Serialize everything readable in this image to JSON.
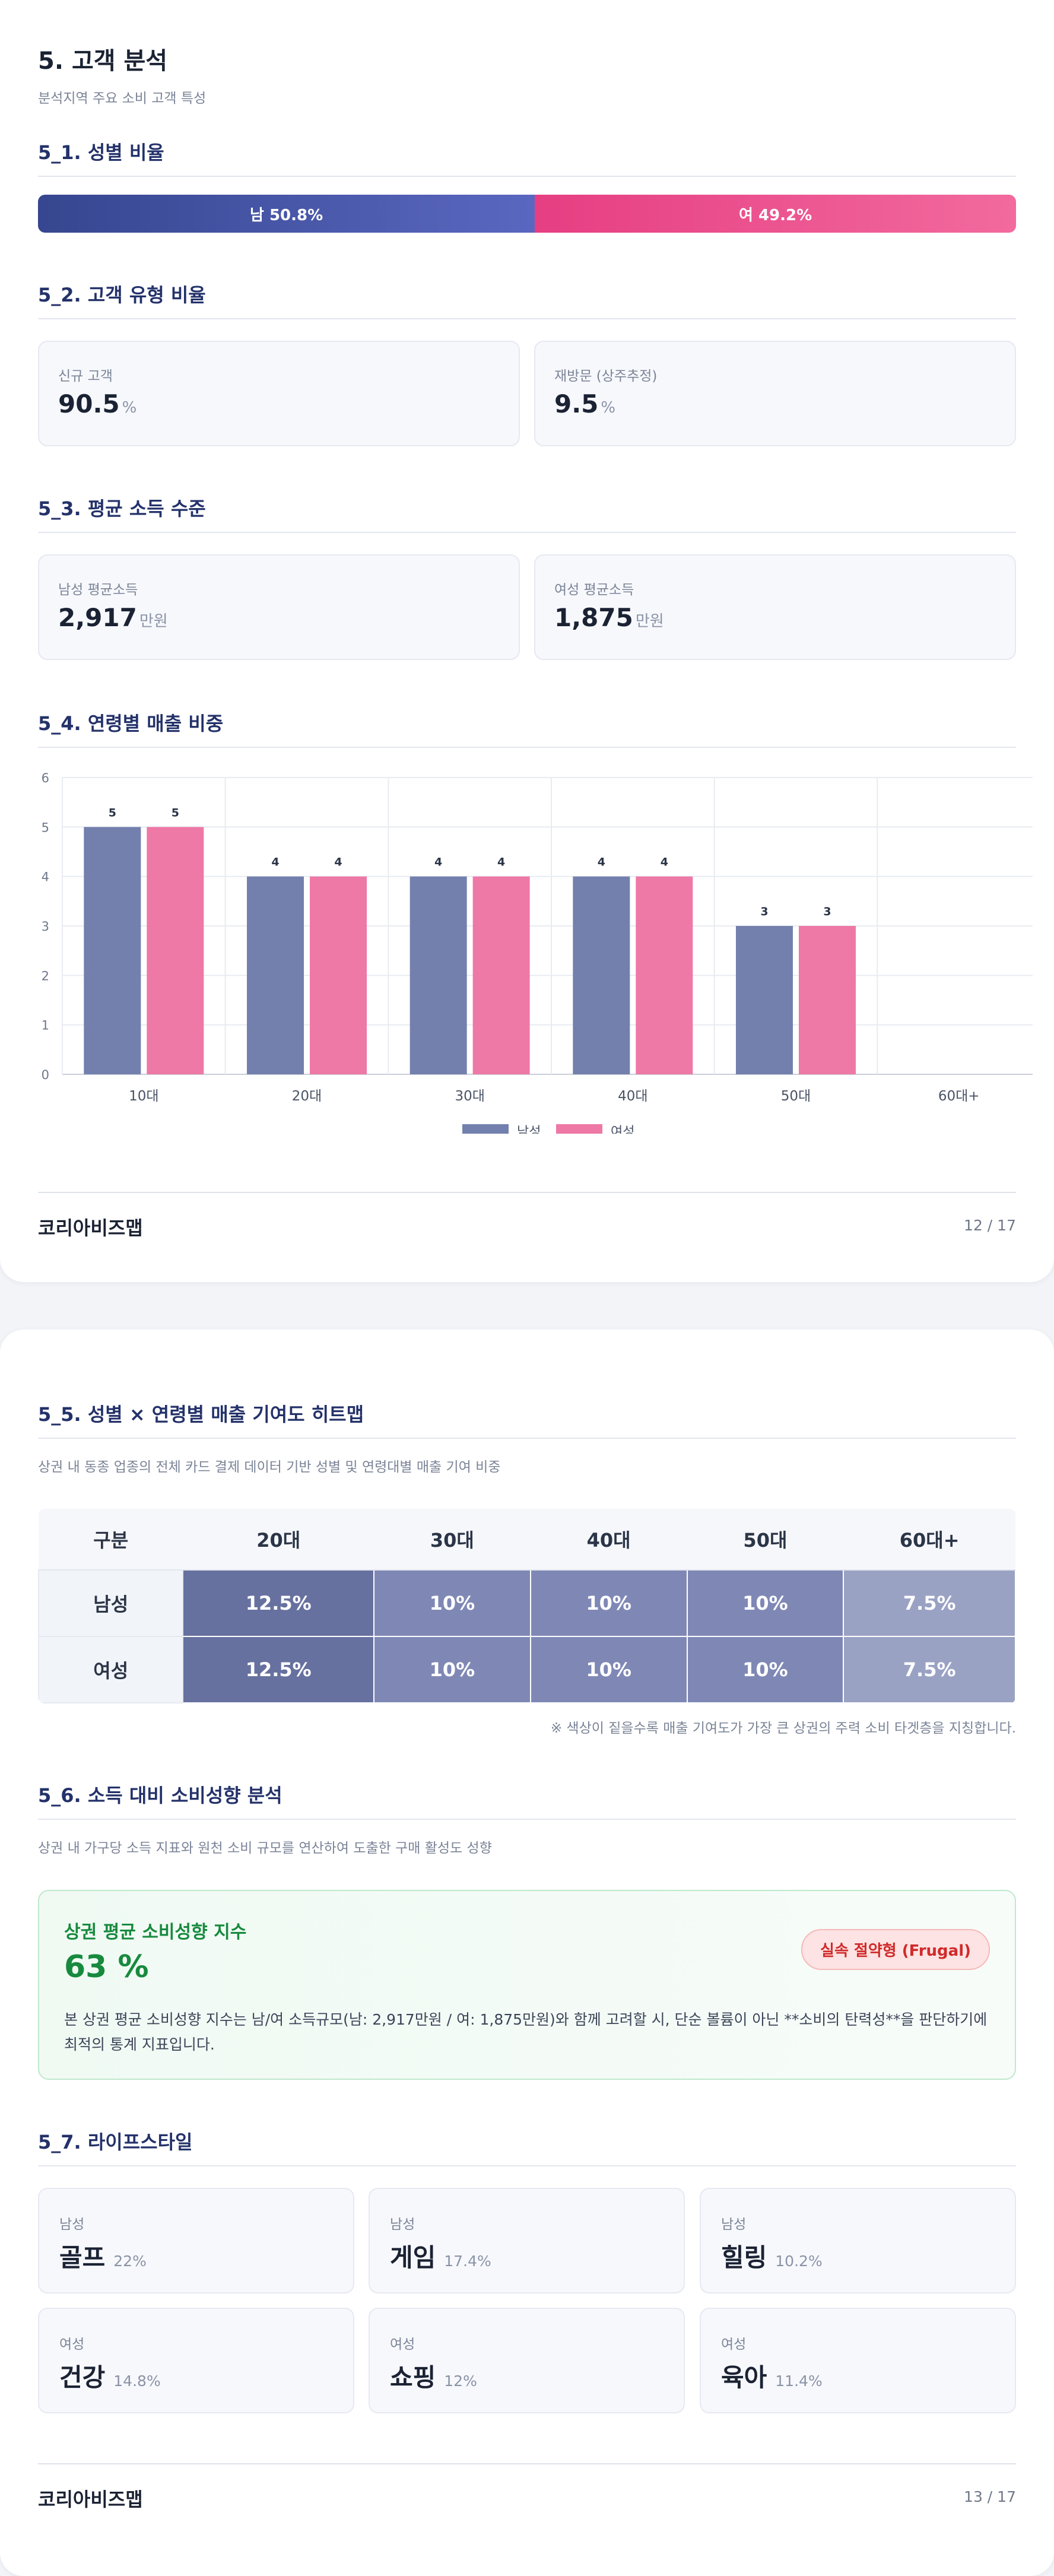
{
  "page1": {
    "title": "5. 고객 분석",
    "subtitle": "분석지역 주요 소비 고객 특성",
    "gender": {
      "heading": "5_1. 성별 비율",
      "male_label": "남 50.8%",
      "female_label": "여 49.2%",
      "male_pct": 50.8,
      "female_pct": 49.2,
      "colors": {
        "male": "#4b57a8",
        "female": "#ec4d8c"
      }
    },
    "customer_type": {
      "heading": "5_2. 고객 유형 비율",
      "new": {
        "label": "신규 고객",
        "value": "90.5",
        "unit": "%"
      },
      "returning": {
        "label": "재방문 (상주추정)",
        "value": "9.5",
        "unit": "%"
      }
    },
    "income": {
      "heading": "5_3. 평균 소득 수준",
      "male": {
        "label": "남성 평균소득",
        "value": "2,917",
        "unit": "만원"
      },
      "female": {
        "label": "여성 평균소득",
        "value": "1,875",
        "unit": "만원"
      }
    },
    "age_heading": "5_4. 연령별 매출 비중",
    "footer": {
      "brand": "코리아비즈맵",
      "page": "12 / 17"
    }
  },
  "chart_data": {
    "type": "bar",
    "categories": [
      "10대",
      "20대",
      "30대",
      "40대",
      "50대",
      "60대+"
    ],
    "series": [
      {
        "name": "남성",
        "values": [
          5,
          4,
          4,
          4,
          3,
          null
        ],
        "color": "#7380ad"
      },
      {
        "name": "여성",
        "values": [
          5,
          4,
          4,
          4,
          3,
          null
        ],
        "color": "#ee78a6"
      }
    ],
    "ylim": [
      0,
      6
    ],
    "yticks": [
      "0",
      "1",
      "2",
      "3",
      "4",
      "5",
      "6"
    ],
    "grid": true,
    "legend": "bottom-center"
  },
  "page2": {
    "heatmap": {
      "heading": "5_5. 성별 × 연령별 매출 기여도 히트맵",
      "desc": "상권 내 동종 업종의 전체 카드 결제 데이터 기반 성별 및 연령대별 매출 기여 비중",
      "corner": "구분",
      "columns": [
        "20대",
        "30대",
        "40대",
        "50대",
        "60대+"
      ],
      "rows": [
        {
          "label": "남성",
          "cells": [
            "12.5%",
            "10%",
            "10%",
            "10%",
            "7.5%"
          ]
        },
        {
          "label": "여성",
          "cells": [
            "12.5%",
            "10%",
            "10%",
            "10%",
            "7.5%"
          ]
        }
      ],
      "cell_colors": [
        "#67719f",
        "#7f88b5",
        "#7f88b5",
        "#7f88b5",
        "#9aa2c4"
      ],
      "note": "※ 색상이 짙을수록 매출 기여도가 가장 큰 상권의 주력 소비 타겟층을 지칭합니다."
    },
    "propensity": {
      "heading": "5_6. 소득 대비 소비성향 분석",
      "desc": "상권 내 가구당 소득 지표와 원천 소비 규모를 연산하여 도출한 구매 활성도 성향",
      "card_title": "상권 평균 소비성향 지수",
      "value": "63 %",
      "badge": "실속 절약형 (Frugal)",
      "body": "본 상권 평균 소비성향 지수는 남/여 소득규모(남: 2,917만원 / 여: 1,875만원)와 함께 고려할 시, 단순 볼륨이 아닌 **소비의 탄력성**을 판단하기에 최적의 통계 지표입니다."
    },
    "lifestyle": {
      "heading": "5_7. 라이프스타일",
      "items": [
        {
          "gender": "남성",
          "name": "골프",
          "pct": "22%"
        },
        {
          "gender": "남성",
          "name": "게임",
          "pct": "17.4%"
        },
        {
          "gender": "남성",
          "name": "힐링",
          "pct": "10.2%"
        },
        {
          "gender": "여성",
          "name": "건강",
          "pct": "14.8%"
        },
        {
          "gender": "여성",
          "name": "쇼핑",
          "pct": "12%"
        },
        {
          "gender": "여성",
          "name": "육아",
          "pct": "11.4%"
        }
      ]
    },
    "footer": {
      "brand": "코리아비즈맵",
      "page": "13 / 17"
    }
  }
}
